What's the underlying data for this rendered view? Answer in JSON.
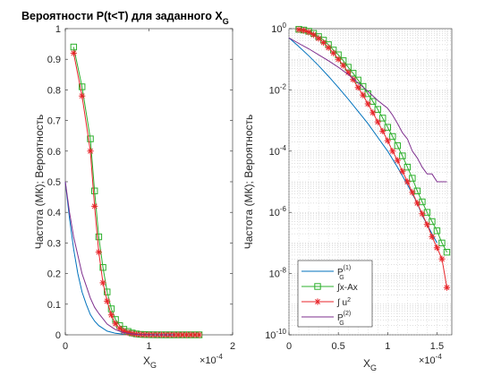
{
  "chart_data": [
    {
      "type": "line",
      "title": "Вероятности P(t<T) для заданного X",
      "title_sub": "G",
      "ylabel": "Частота (МК); Вероятность",
      "xlabel": "X",
      "xlabel_sub": "G",
      "x_exponent_label": "×10",
      "x_exponent": "-4",
      "xlim": [
        0,
        2
      ],
      "ylim": [
        0,
        1
      ],
      "yscale": "linear",
      "grid": false,
      "xticks": [
        "0",
        "1",
        "2"
      ],
      "yticks": [
        "0",
        "0.1",
        "0.2",
        "0.3",
        "0.4",
        "0.5",
        "0.6",
        "0.7",
        "0.8",
        "0.9",
        "1"
      ],
      "series": [
        {
          "color": "#0072BD",
          "marker": "none",
          "x": [
            0,
            0.05,
            0.1,
            0.15,
            0.2,
            0.25,
            0.3,
            0.35,
            0.4,
            0.5,
            0.6,
            0.7,
            0.8,
            0.9,
            1.0
          ],
          "y": [
            0.5,
            0.38,
            0.28,
            0.2,
            0.14,
            0.1,
            0.066,
            0.045,
            0.03,
            0.012,
            0.005,
            0.002,
            0.001,
            0.0003,
            0.0001
          ]
        },
        {
          "color": "#2CB02C",
          "marker": "square",
          "x": [
            0.1,
            0.2,
            0.3,
            0.35,
            0.4,
            0.45,
            0.5,
            0.55,
            0.6,
            0.65,
            0.7,
            0.75,
            0.8,
            0.85,
            0.9,
            0.95,
            1.0,
            1.05,
            1.1,
            1.15,
            1.2,
            1.25,
            1.3,
            1.35,
            1.4,
            1.45,
            1.5,
            1.55,
            1.6
          ],
          "y": [
            0.94,
            0.81,
            0.64,
            0.47,
            0.32,
            0.22,
            0.14,
            0.085,
            0.05,
            0.03,
            0.018,
            0.011,
            0.006,
            0.003,
            0.0015,
            0.0008,
            0.0004,
            0.0002,
            0.0001,
            6e-05,
            3e-05,
            1e-05,
            5e-06,
            2e-06,
            1e-06,
            5e-07,
            2e-07,
            1e-07,
            5e-08
          ]
        },
        {
          "color": "#E8262B",
          "marker": "star",
          "x": [
            0.1,
            0.2,
            0.3,
            0.35,
            0.4,
            0.45,
            0.5,
            0.55,
            0.6,
            0.65,
            0.7,
            0.75,
            0.8,
            0.85,
            0.9,
            0.95,
            1.0,
            1.05,
            1.1,
            1.15,
            1.2,
            1.25,
            1.3,
            1.35,
            1.4,
            1.45,
            1.5,
            1.55,
            1.6
          ],
          "y": [
            0.92,
            0.78,
            0.6,
            0.42,
            0.27,
            0.17,
            0.11,
            0.065,
            0.036,
            0.021,
            0.012,
            0.007,
            0.004,
            0.002,
            0.001,
            0.0005,
            0.00025,
            0.00012,
            6e-05,
            3e-05,
            1.5e-05,
            7e-06,
            3e-06,
            1.3e-06,
            6e-07,
            2.5e-07,
            1e-07,
            4e-08,
            1.4e-08
          ]
        },
        {
          "color": "#7E2F8E",
          "marker": "none",
          "x": [
            0,
            0.05,
            0.1,
            0.15,
            0.2,
            0.25,
            0.3,
            0.35,
            0.4,
            0.5,
            0.6,
            0.7,
            0.8,
            0.9,
            1.0,
            1.05,
            1.1,
            1.2,
            1.3
          ],
          "y": [
            0.5,
            0.4,
            0.32,
            0.26,
            0.2,
            0.16,
            0.12,
            0.09,
            0.07,
            0.035,
            0.017,
            0.007,
            0.003,
            0.001,
            0.0004,
            0.0002,
            0.0001,
            3e-05,
            1e-05
          ]
        }
      ]
    },
    {
      "type": "line",
      "ylabel": "Частота (МК); Вероятность",
      "xlabel": "X",
      "xlabel_sub": "G",
      "x_exponent_label": "×10",
      "x_exponent": "-4",
      "xlim": [
        0,
        1.65
      ],
      "ylim_exp": [
        -10,
        0
      ],
      "yscale": "log",
      "grid": true,
      "xticks": [
        "0",
        "0.5",
        "1",
        "1.5"
      ],
      "yticks_exp": [
        "-10",
        "-8",
        "-6",
        "-4",
        "-2",
        "0"
      ],
      "ytick_base": "10",
      "legend": {
        "location": "bottom-left",
        "entries": [
          {
            "label": "P",
            "sub": "G",
            "sup": "(1)"
          },
          {
            "label": "∫x-Ax",
            "sub": "",
            "sup": ""
          },
          {
            "label": "∫ u",
            "sub": "",
            "sup": "2"
          },
          {
            "label": "P",
            "sub": "G",
            "sup": "(2)"
          }
        ]
      },
      "series": [
        {
          "color": "#0072BD",
          "marker": "none",
          "x": [
            0,
            0.1,
            0.2,
            0.3,
            0.4,
            0.5,
            0.6,
            0.7,
            0.8,
            0.9,
            1.0,
            1.1,
            1.2,
            1.3,
            1.35,
            1.4,
            1.45,
            1.5
          ],
          "y": [
            0.5,
            0.26,
            0.13,
            0.062,
            0.028,
            0.012,
            0.005,
            0.002,
            0.0008,
            0.00028,
            0.0001,
            3e-05,
            8e-06,
            2e-06,
            8e-07,
            4e-07,
            2e-07,
            1e-07
          ]
        },
        {
          "color": "#2CB02C",
          "marker": "square",
          "x": [
            0.1,
            0.15,
            0.2,
            0.25,
            0.3,
            0.35,
            0.4,
            0.45,
            0.5,
            0.55,
            0.6,
            0.65,
            0.7,
            0.75,
            0.8,
            0.85,
            0.9,
            0.95,
            1.0,
            1.05,
            1.1,
            1.15,
            1.2,
            1.25,
            1.3,
            1.35,
            1.4,
            1.45,
            1.5,
            1.55,
            1.6
          ],
          "y": [
            0.95,
            0.9,
            0.82,
            0.7,
            0.55,
            0.42,
            0.3,
            0.2,
            0.14,
            0.09,
            0.055,
            0.035,
            0.021,
            0.013,
            0.0075,
            0.0042,
            0.0023,
            0.0012,
            0.0006,
            0.0003,
            0.00015,
            7e-05,
            3e-05,
            1.3e-05,
            5e-06,
            2.2e-06,
            1e-06,
            5e-07,
            2.5e-07,
            1e-07,
            5e-08
          ]
        },
        {
          "color": "#E8262B",
          "marker": "star",
          "x": [
            0.1,
            0.15,
            0.2,
            0.25,
            0.3,
            0.35,
            0.4,
            0.45,
            0.5,
            0.55,
            0.6,
            0.65,
            0.7,
            0.75,
            0.8,
            0.85,
            0.9,
            0.95,
            1.0,
            1.05,
            1.1,
            1.15,
            1.2,
            1.25,
            1.3,
            1.35,
            1.4,
            1.45,
            1.5,
            1.55,
            1.6
          ],
          "y": [
            0.93,
            0.87,
            0.77,
            0.63,
            0.48,
            0.35,
            0.24,
            0.16,
            0.1,
            0.063,
            0.037,
            0.022,
            0.012,
            0.0068,
            0.0035,
            0.0018,
            0.0009,
            0.00045,
            0.00022,
            0.0001,
            5e-05,
            2.2e-05,
            1e-05,
            4.5e-06,
            2e-06,
            9e-07,
            4e-07,
            1.6e-07,
            7e-08,
            3e-08,
            3.5e-09
          ]
        },
        {
          "color": "#7E2F8E",
          "marker": "none",
          "x": [
            0,
            0.1,
            0.2,
            0.3,
            0.4,
            0.5,
            0.6,
            0.7,
            0.8,
            0.9,
            1.0,
            1.05,
            1.1,
            1.15,
            1.2,
            1.25,
            1.3,
            1.35,
            1.4,
            1.45,
            1.5,
            1.55,
            1.6
          ],
          "y": [
            0.5,
            0.33,
            0.22,
            0.14,
            0.09,
            0.055,
            0.032,
            0.017,
            0.009,
            0.0045,
            0.0025,
            0.0015,
            0.0008,
            0.0004,
            0.00025,
            0.0001,
            6e-05,
            3e-05,
            1.8e-05,
            1.8e-05,
            1e-05,
            1e-05,
            1e-05
          ]
        }
      ]
    }
  ]
}
